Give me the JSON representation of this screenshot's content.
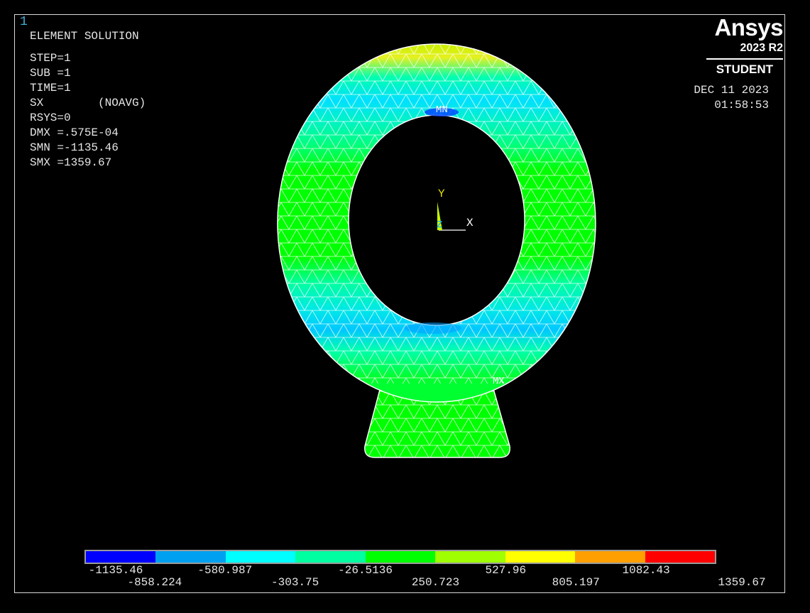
{
  "window_number": "1",
  "info": {
    "lines": [
      "ELEMENT SOLUTION",
      "STEP=1",
      "SUB =1",
      "TIME=1",
      "SX        (NOAVG)",
      "RSYS=0",
      "DMX =.575E-04",
      "SMN =-1135.46",
      "SMX =1359.67"
    ]
  },
  "brand": {
    "name": "Ansys",
    "version": "2023 R2",
    "edition": "STUDENT"
  },
  "date": "DEC 11 2023",
  "time": "01:58:53",
  "markers": {
    "min": "MN",
    "max": "MX"
  },
  "triad": {
    "x": "X",
    "y": "Y",
    "z": "Z"
  },
  "legend": {
    "colors": [
      "#0000ff",
      "#00a0f0",
      "#00ffff",
      "#00ffa0",
      "#00ff00",
      "#a0ff00",
      "#ffff00",
      "#ffa000",
      "#ff0000"
    ],
    "labels_top": [
      "-1135.46",
      "-580.987",
      "-26.5136",
      "527.96",
      "1082.43"
    ],
    "labels_bottom": [
      "-858.224",
      "-303.75",
      "250.723",
      "805.197",
      "1359.67"
    ]
  }
}
